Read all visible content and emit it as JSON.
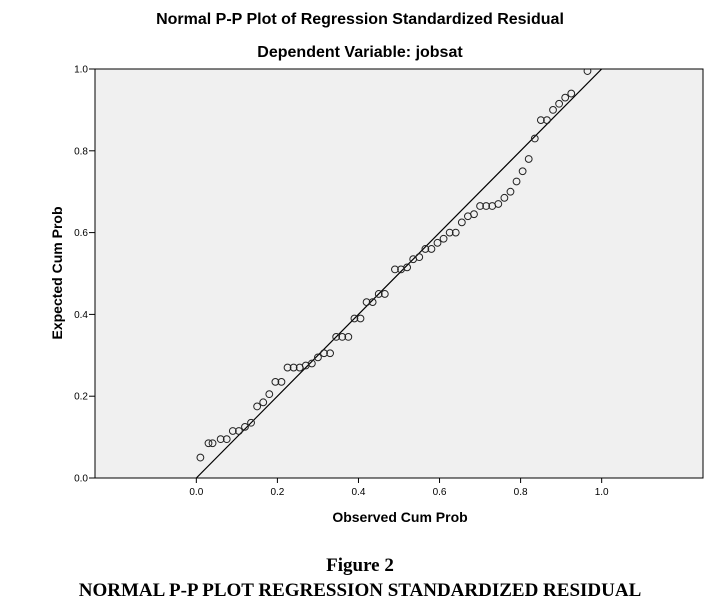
{
  "chart_data": {
    "type": "scatter",
    "title": "Normal P-P Plot of Regression Standardized Residual",
    "subtitle": "Dependent Variable: jobsat",
    "xlabel": "Observed Cum Prob",
    "ylabel": "Expected Cum Prob",
    "xlim": [
      -0.25,
      1.25
    ],
    "ylim": [
      0.0,
      1.0
    ],
    "xticks": [
      "0.0",
      "0.2",
      "0.4",
      "0.6",
      "0.8",
      "1.0"
    ],
    "xtick_values": [
      0.0,
      0.2,
      0.4,
      0.6,
      0.8,
      1.0
    ],
    "yticks": [
      "0.0",
      "0.2",
      "0.4",
      "0.6",
      "0.8",
      "1.0"
    ],
    "ytick_values": [
      0.0,
      0.2,
      0.4,
      0.6,
      0.8,
      1.0
    ],
    "grid": false,
    "reference_line": {
      "from": [
        0,
        0
      ],
      "to": [
        1,
        1
      ]
    },
    "colors": {
      "plot_background": "#f0f0f0",
      "marker_stroke": "#222222",
      "line": "#000000"
    },
    "points": [
      [
        0.01,
        0.05
      ],
      [
        0.03,
        0.085
      ],
      [
        0.04,
        0.085
      ],
      [
        0.06,
        0.095
      ],
      [
        0.075,
        0.095
      ],
      [
        0.09,
        0.115
      ],
      [
        0.105,
        0.115
      ],
      [
        0.12,
        0.125
      ],
      [
        0.135,
        0.135
      ],
      [
        0.15,
        0.175
      ],
      [
        0.165,
        0.185
      ],
      [
        0.18,
        0.205
      ],
      [
        0.195,
        0.235
      ],
      [
        0.21,
        0.235
      ],
      [
        0.225,
        0.27
      ],
      [
        0.24,
        0.27
      ],
      [
        0.255,
        0.27
      ],
      [
        0.27,
        0.275
      ],
      [
        0.285,
        0.28
      ],
      [
        0.3,
        0.295
      ],
      [
        0.315,
        0.305
      ],
      [
        0.33,
        0.305
      ],
      [
        0.345,
        0.345
      ],
      [
        0.36,
        0.345
      ],
      [
        0.375,
        0.345
      ],
      [
        0.39,
        0.39
      ],
      [
        0.405,
        0.39
      ],
      [
        0.42,
        0.43
      ],
      [
        0.435,
        0.43
      ],
      [
        0.45,
        0.45
      ],
      [
        0.465,
        0.45
      ],
      [
        0.49,
        0.51
      ],
      [
        0.505,
        0.51
      ],
      [
        0.52,
        0.515
      ],
      [
        0.535,
        0.535
      ],
      [
        0.55,
        0.54
      ],
      [
        0.565,
        0.56
      ],
      [
        0.58,
        0.56
      ],
      [
        0.595,
        0.575
      ],
      [
        0.61,
        0.585
      ],
      [
        0.625,
        0.6
      ],
      [
        0.64,
        0.6
      ],
      [
        0.655,
        0.625
      ],
      [
        0.67,
        0.64
      ],
      [
        0.685,
        0.645
      ],
      [
        0.7,
        0.665
      ],
      [
        0.715,
        0.665
      ],
      [
        0.73,
        0.665
      ],
      [
        0.745,
        0.67
      ],
      [
        0.76,
        0.685
      ],
      [
        0.775,
        0.7
      ],
      [
        0.79,
        0.725
      ],
      [
        0.805,
        0.75
      ],
      [
        0.82,
        0.78
      ],
      [
        0.835,
        0.83
      ],
      [
        0.85,
        0.875
      ],
      [
        0.865,
        0.875
      ],
      [
        0.88,
        0.9
      ],
      [
        0.895,
        0.915
      ],
      [
        0.91,
        0.93
      ],
      [
        0.925,
        0.94
      ],
      [
        0.965,
        0.995
      ]
    ]
  },
  "figure": {
    "label": "Figure 2",
    "caption": "NORMAL P-P PLOT REGRESSION STANDARDIZED RESIDUAL"
  }
}
